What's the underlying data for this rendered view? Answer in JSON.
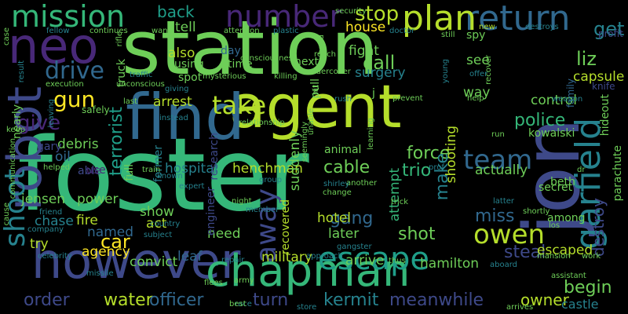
{
  "background": "#000000",
  "palette": [
    "#440154",
    "#482878",
    "#3e4989",
    "#31688e",
    "#26828e",
    "#1f9e89",
    "#35b779",
    "#6ece58",
    "#b5de2b",
    "#fde725"
  ],
  "words": [
    {
      "text": "foster",
      "color": "#35b779"
    },
    {
      "text": "station",
      "color": "#6ece58"
    },
    {
      "text": "agent",
      "color": "#b5de2b"
    },
    {
      "text": "jon",
      "color": "#3e4989"
    },
    {
      "text": "find",
      "color": "#31688e"
    },
    {
      "text": "however",
      "color": "#3e4989"
    },
    {
      "text": "chapman",
      "color": "#35b779"
    },
    {
      "text": "neo",
      "color": "#482878"
    },
    {
      "text": "robot",
      "color": "#3e4989"
    },
    {
      "text": "mission",
      "color": "#35b779"
    },
    {
      "text": "return",
      "color": "#31688e"
    },
    {
      "text": "number",
      "color": "#482878"
    },
    {
      "text": "plan",
      "color": "#b5de2b"
    },
    {
      "text": "garfield",
      "color": "#26828e"
    },
    {
      "text": "escape",
      "color": "#1f9e89"
    },
    {
      "text": "take",
      "color": "#b5de2b"
    },
    {
      "text": "drive",
      "color": "#31688e"
    },
    {
      "text": "gun",
      "color": "#fde725"
    },
    {
      "text": "give",
      "color": "#482878"
    },
    {
      "text": "shoot",
      "color": "#26828e"
    },
    {
      "text": "away",
      "color": "#3e4989"
    },
    {
      "text": "team",
      "color": "#31688e"
    },
    {
      "text": "owen",
      "color": "#b5de2b"
    },
    {
      "text": "police",
      "color": "#35b779"
    },
    {
      "text": "force",
      "color": "#6ece58"
    },
    {
      "text": "cable",
      "color": "#6ece58"
    },
    {
      "text": "water",
      "color": "#b5de2b"
    },
    {
      "text": "officer",
      "color": "#31688e"
    },
    {
      "text": "kermit",
      "color": "#26828e"
    },
    {
      "text": "meanwhile",
      "color": "#3e4989"
    },
    {
      "text": "turn",
      "color": "#3e4989"
    },
    {
      "text": "car",
      "color": "#fde725"
    },
    {
      "text": "stop",
      "color": "#b5de2b"
    },
    {
      "text": "back",
      "color": "#1f9e89"
    },
    {
      "text": "call",
      "color": "#6ece58"
    },
    {
      "text": "liz",
      "color": "#6ece58"
    },
    {
      "text": "get",
      "color": "#26828e"
    },
    {
      "text": "order",
      "color": "#3e4989"
    },
    {
      "text": "terrorist",
      "color": "#1f9e89"
    },
    {
      "text": "hospital",
      "color": "#26828e"
    },
    {
      "text": "henchman",
      "color": "#b5de2b"
    },
    {
      "text": "arrest",
      "color": "#b5de2b"
    },
    {
      "text": "steal",
      "color": "#3e4989"
    },
    {
      "text": "miss",
      "color": "#31688e"
    },
    {
      "text": "begin",
      "color": "#6ece58"
    },
    {
      "text": "owner",
      "color": "#b5de2b"
    },
    {
      "text": "escaped",
      "color": "#b5de2b"
    },
    {
      "text": "gang",
      "color": "#31688e"
    },
    {
      "text": "make",
      "color": "#26828e"
    },
    {
      "text": "shot",
      "color": "#6ece58"
    },
    {
      "text": "trio",
      "color": "#35b779"
    },
    {
      "text": "hamilton",
      "color": "#6ece58"
    },
    {
      "text": "control",
      "color": "#6ece58"
    },
    {
      "text": "capsule",
      "color": "#b5de2b"
    },
    {
      "text": "destroy",
      "color": "#3e4989"
    },
    {
      "text": "castle",
      "color": "#26828e"
    },
    {
      "text": "kowalski",
      "color": "#6ece58"
    },
    {
      "text": "parachute",
      "color": "#6ece58"
    },
    {
      "text": "later",
      "color": "#6ece58"
    },
    {
      "text": "hotel",
      "color": "#b5de2b"
    },
    {
      "text": "military",
      "color": "#b5de2b"
    },
    {
      "text": "arrive",
      "color": "#6ece58"
    },
    {
      "text": "agency",
      "color": "#fde725"
    },
    {
      "text": "chase",
      "color": "#26828e"
    },
    {
      "text": "try",
      "color": "#b5de2b"
    },
    {
      "text": "power",
      "color": "#6ece58"
    },
    {
      "text": "fire",
      "color": "#b5de2b"
    },
    {
      "text": "named",
      "color": "#31688e"
    },
    {
      "text": "jensen",
      "color": "#6ece58"
    },
    {
      "text": "leaf",
      "color": "#31688e"
    },
    {
      "text": "convict",
      "color": "#6ece58"
    },
    {
      "text": "need",
      "color": "#6ece58"
    },
    {
      "text": "show",
      "color": "#6ece58"
    },
    {
      "text": "act",
      "color": "#b5de2b"
    },
    {
      "text": "engineer",
      "color": "#3e4989"
    },
    {
      "text": "recovered",
      "color": "#b5de2b"
    },
    {
      "text": "attempt",
      "color": "#35b779"
    },
    {
      "text": "actually",
      "color": "#6ece58"
    },
    {
      "text": "secret",
      "color": "#6ece58"
    },
    {
      "text": "beth",
      "color": "#6ece58"
    },
    {
      "text": "among",
      "color": "#6ece58"
    },
    {
      "text": "animal",
      "color": "#6ece58"
    },
    {
      "text": "suddenly",
      "color": "#6ece58"
    },
    {
      "text": "research",
      "color": "#3e4989"
    },
    {
      "text": "surgery",
      "color": "#26828e"
    },
    {
      "text": "shooting",
      "color": "#b5de2b"
    },
    {
      "text": "pull",
      "color": "#6ece58"
    },
    {
      "text": "fight",
      "color": "#6ece58"
    },
    {
      "text": "house",
      "color": "#fde725"
    },
    {
      "text": "next",
      "color": "#6ece58"
    },
    {
      "text": "time",
      "color": "#6ece58"
    },
    {
      "text": "day",
      "color": "#31688e"
    },
    {
      "text": "spot",
      "color": "#6ece58"
    },
    {
      "text": "also",
      "color": "#b5de2b"
    },
    {
      "text": "tell",
      "color": "#6ece58"
    },
    {
      "text": "see",
      "color": "#6ece58"
    },
    {
      "text": "way",
      "color": "#6ece58"
    },
    {
      "text": "nearly",
      "color": "#6ece58"
    },
    {
      "text": "oil",
      "color": "#31688e"
    },
    {
      "text": "debris",
      "color": "#6ece58"
    },
    {
      "text": "able",
      "color": "#3e4989"
    },
    {
      "text": "use",
      "color": "#482878"
    },
    {
      "text": "gary",
      "color": "#3e4989"
    },
    {
      "text": "former",
      "color": "#26828e"
    },
    {
      "text": "full",
      "color": "#6ece58"
    },
    {
      "text": "train",
      "color": "#6ece58"
    },
    {
      "text": "truck",
      "color": "#6ece58"
    },
    {
      "text": "using",
      "color": "#6ece58"
    },
    {
      "text": "safely",
      "color": "#6ece58"
    },
    {
      "text": "rifle",
      "color": "#6ece58"
    },
    {
      "text": "new",
      "color": "#b5de2b"
    },
    {
      "text": "still",
      "color": "#6ece58"
    },
    {
      "text": "spy",
      "color": "#6ece58"
    },
    {
      "text": "profit",
      "color": "#3e4989"
    },
    {
      "text": "family",
      "color": "#31688e"
    },
    {
      "text": "knife",
      "color": "#3e4989"
    },
    {
      "text": "weapon",
      "color": "#26828e"
    },
    {
      "text": "hideout",
      "color": "#6ece58"
    },
    {
      "text": "dr",
      "color": "#6ece58"
    },
    {
      "text": "j",
      "color": "#6ece58"
    },
    {
      "text": "run",
      "color": "#6ece58"
    },
    {
      "text": "killing",
      "color": "#6ece58"
    },
    {
      "text": "consciousness",
      "color": "#6ece58"
    },
    {
      "text": "relationship",
      "color": "#6ece58"
    },
    {
      "text": "prevent",
      "color": "#6ece58"
    },
    {
      "text": "rush",
      "color": "#26828e"
    },
    {
      "text": "help",
      "color": "#6ece58"
    },
    {
      "text": "last",
      "color": "#6ece58"
    },
    {
      "text": "instead",
      "color": "#26828e"
    },
    {
      "text": "giving",
      "color": "#26828e"
    },
    {
      "text": "traffic",
      "color": "#26828e"
    },
    {
      "text": "mysterious",
      "color": "#6ece58"
    },
    {
      "text": "undercover",
      "color": "#6ece58"
    },
    {
      "text": "execution",
      "color": "#6ece58"
    },
    {
      "text": "unconscious",
      "color": "#6ece58"
    },
    {
      "text": "communication",
      "color": "#6ece58"
    },
    {
      "text": "cause",
      "color": "#6ece58"
    },
    {
      "text": "keep",
      "color": "#6ece58"
    },
    {
      "text": "helped",
      "color": "#6ece58"
    },
    {
      "text": "friend",
      "color": "#26828e"
    },
    {
      "text": "company",
      "color": "#26828e"
    },
    {
      "text": "celebrity",
      "color": "#26828e"
    },
    {
      "text": "missile",
      "color": "#26828e"
    },
    {
      "text": "known",
      "color": "#26828e"
    },
    {
      "text": "country",
      "color": "#26828e"
    },
    {
      "text": "subject",
      "color": "#26828e"
    },
    {
      "text": "expert",
      "color": "#26828e"
    },
    {
      "text": "night",
      "color": "#6ece58"
    },
    {
      "text": "member",
      "color": "#26828e"
    },
    {
      "text": "group",
      "color": "#26828e"
    },
    {
      "text": "another",
      "color": "#6ece58"
    },
    {
      "text": "change",
      "color": "#6ece58"
    },
    {
      "text": "gangster",
      "color": "#26828e"
    },
    {
      "text": "approach",
      "color": "#26828e"
    },
    {
      "text": "repair",
      "color": "#26828e"
    },
    {
      "text": "flees",
      "color": "#6ece58"
    },
    {
      "text": "army",
      "color": "#6ece58"
    },
    {
      "text": "race",
      "color": "#26828e"
    },
    {
      "text": "best",
      "color": "#6ece58"
    },
    {
      "text": "store",
      "color": "#26828e"
    },
    {
      "text": "thus",
      "color": "#6ece58"
    },
    {
      "text": "aboard",
      "color": "#26828e"
    },
    {
      "text": "assistant",
      "color": "#6ece58"
    },
    {
      "text": "arrives",
      "color": "#6ece58"
    },
    {
      "text": "mansion",
      "color": "#6ece58"
    },
    {
      "text": "work",
      "color": "#6ece58"
    },
    {
      "text": "los",
      "color": "#6ece58"
    },
    {
      "text": "shortly",
      "color": "#6ece58"
    },
    {
      "text": "latter",
      "color": "#26828e"
    },
    {
      "text": "trick",
      "color": "#6ece58"
    },
    {
      "text": "prof",
      "color": "#26828e"
    },
    {
      "text": "shirley",
      "color": "#26828e"
    },
    {
      "text": "learning",
      "color": "#6ece58"
    },
    {
      "text": "seemingly",
      "color": "#6ece58"
    },
    {
      "text": "unable",
      "color": "#6ece58"
    },
    {
      "text": "hit",
      "color": "#6ece58"
    },
    {
      "text": "reach",
      "color": "#6ece58"
    },
    {
      "text": "hand",
      "color": "#6ece58"
    },
    {
      "text": "security",
      "color": "#6ece58"
    },
    {
      "text": "attention",
      "color": "#6ece58"
    },
    {
      "text": "plastic",
      "color": "#26828e"
    },
    {
      "text": "doctor",
      "color": "#26828e"
    },
    {
      "text": "wand",
      "color": "#6ece58"
    },
    {
      "text": "continues",
      "color": "#6ece58"
    },
    {
      "text": "fellow",
      "color": "#26828e"
    },
    {
      "text": "case",
      "color": "#6ece58"
    },
    {
      "text": "result",
      "color": "#26828e"
    },
    {
      "text": "leaving",
      "color": "#26828e"
    },
    {
      "text": "young",
      "color": "#26828e"
    },
    {
      "text": "offer",
      "color": "#26828e"
    },
    {
      "text": "recover",
      "color": "#6ece58"
    },
    {
      "text": "destroys",
      "color": "#26828e"
    },
    {
      "text": "angeles",
      "color": "#26828e"
    },
    {
      "text": "father",
      "color": "#26828e"
    },
    {
      "text": "dead",
      "color": "#26828e"
    },
    {
      "text": "pass",
      "color": "#6ece58"
    }
  ]
}
